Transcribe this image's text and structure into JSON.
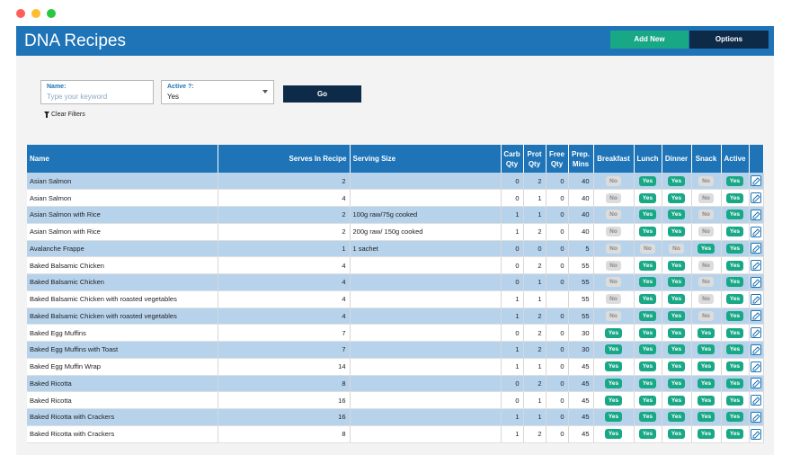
{
  "window": {
    "controls": [
      "close",
      "minimize",
      "maximize"
    ]
  },
  "header": {
    "title": "DNA Recipes",
    "add_label": "Add New",
    "options_label": "Options"
  },
  "filters": {
    "name_label": "Name:",
    "name_placeholder": "Type your keyword",
    "active_label": "Active ?:",
    "active_value": "Yes",
    "go_label": "Go",
    "clear_label": "Clear Filters"
  },
  "table": {
    "columns": [
      "Name",
      "Serves In Recipe",
      "Serving Size",
      "Carb Qty",
      "Prot Qty",
      "Free Qty",
      "Prep. Mins",
      "Breakfast",
      "Lunch",
      "Dinner",
      "Snack",
      "Active"
    ],
    "rows": [
      {
        "name": "Asian Salmon",
        "serves": "2",
        "size": "",
        "carb": "0",
        "prot": "2",
        "free": "0",
        "prep": "40",
        "breakfast": "No",
        "lunch": "Yes",
        "dinner": "Yes",
        "snack": "No",
        "active": "Yes"
      },
      {
        "name": "Asian Salmon",
        "serves": "4",
        "size": "",
        "carb": "0",
        "prot": "1",
        "free": "0",
        "prep": "40",
        "breakfast": "No",
        "lunch": "Yes",
        "dinner": "Yes",
        "snack": "No",
        "active": "Yes"
      },
      {
        "name": "Asian Salmon with Rice",
        "serves": "2",
        "size": "100g raw/75g cooked",
        "carb": "1",
        "prot": "1",
        "free": "0",
        "prep": "40",
        "breakfast": "No",
        "lunch": "Yes",
        "dinner": "Yes",
        "snack": "No",
        "active": "Yes"
      },
      {
        "name": "Asian Salmon with Rice",
        "serves": "2",
        "size": "200g raw/ 150g cooked",
        "carb": "1",
        "prot": "2",
        "free": "0",
        "prep": "40",
        "breakfast": "No",
        "lunch": "Yes",
        "dinner": "Yes",
        "snack": "No",
        "active": "Yes"
      },
      {
        "name": "Avalanche Frappe",
        "serves": "1",
        "size": "1 sachet",
        "carb": "0",
        "prot": "0",
        "free": "0",
        "prep": "5",
        "breakfast": "No",
        "lunch": "No",
        "dinner": "No",
        "snack": "Yes",
        "active": "Yes"
      },
      {
        "name": "Baked Balsamic Chicken",
        "serves": "4",
        "size": "",
        "carb": "0",
        "prot": "2",
        "free": "0",
        "prep": "55",
        "breakfast": "No",
        "lunch": "Yes",
        "dinner": "Yes",
        "snack": "No",
        "active": "Yes"
      },
      {
        "name": "Baked Balsamic Chicken",
        "serves": "4",
        "size": "",
        "carb": "0",
        "prot": "1",
        "free": "0",
        "prep": "55",
        "breakfast": "No",
        "lunch": "Yes",
        "dinner": "Yes",
        "snack": "No",
        "active": "Yes"
      },
      {
        "name": "Baked Balsamic Chicken with roasted vegetables",
        "serves": "4",
        "size": "",
        "carb": "1",
        "prot": "1",
        "free": "",
        "prep": "55",
        "breakfast": "No",
        "lunch": "Yes",
        "dinner": "Yes",
        "snack": "No",
        "active": "Yes"
      },
      {
        "name": "Baked Balsamic Chicken with roasted vegetables",
        "serves": "4",
        "size": "",
        "carb": "1",
        "prot": "2",
        "free": "0",
        "prep": "55",
        "breakfast": "No",
        "lunch": "Yes",
        "dinner": "Yes",
        "snack": "No",
        "active": "Yes"
      },
      {
        "name": "Baked Egg Muffins",
        "serves": "7",
        "size": "",
        "carb": "0",
        "prot": "2",
        "free": "0",
        "prep": "30",
        "breakfast": "Yes",
        "lunch": "Yes",
        "dinner": "Yes",
        "snack": "Yes",
        "active": "Yes"
      },
      {
        "name": "Baked Egg Muffins with Toast",
        "serves": "7",
        "size": "",
        "carb": "1",
        "prot": "2",
        "free": "0",
        "prep": "30",
        "breakfast": "Yes",
        "lunch": "Yes",
        "dinner": "Yes",
        "snack": "Yes",
        "active": "Yes"
      },
      {
        "name": "Baked Egg Muffin Wrap",
        "serves": "14",
        "size": "",
        "carb": "1",
        "prot": "1",
        "free": "0",
        "prep": "45",
        "breakfast": "Yes",
        "lunch": "Yes",
        "dinner": "Yes",
        "snack": "Yes",
        "active": "Yes"
      },
      {
        "name": "Baked Ricotta",
        "serves": "8",
        "size": "",
        "carb": "0",
        "prot": "2",
        "free": "0",
        "prep": "45",
        "breakfast": "Yes",
        "lunch": "Yes",
        "dinner": "Yes",
        "snack": "Yes",
        "active": "Yes"
      },
      {
        "name": "Baked Ricotta",
        "serves": "16",
        "size": "",
        "carb": "0",
        "prot": "1",
        "free": "0",
        "prep": "45",
        "breakfast": "Yes",
        "lunch": "Yes",
        "dinner": "Yes",
        "snack": "Yes",
        "active": "Yes"
      },
      {
        "name": "Baked Ricotta with Crackers",
        "serves": "16",
        "size": "",
        "carb": "1",
        "prot": "1",
        "free": "0",
        "prep": "45",
        "breakfast": "Yes",
        "lunch": "Yes",
        "dinner": "Yes",
        "snack": "Yes",
        "active": "Yes"
      },
      {
        "name": "Baked Ricotta with Crackers",
        "serves": "8",
        "size": "",
        "carb": "1",
        "prot": "2",
        "free": "0",
        "prep": "45",
        "breakfast": "Yes",
        "lunch": "Yes",
        "dinner": "Yes",
        "snack": "Yes",
        "active": "Yes"
      }
    ]
  }
}
